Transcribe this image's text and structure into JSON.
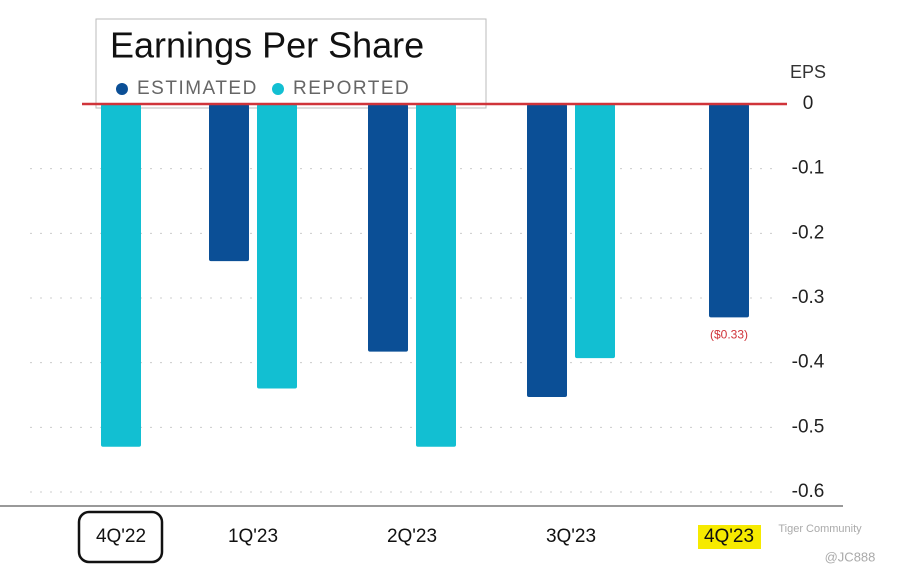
{
  "chart_data": {
    "type": "bar",
    "title": "Earnings Per Share",
    "y_label": "EPS",
    "categories": [
      "4Q'22",
      "1Q'23",
      "2Q'23",
      "3Q'23",
      "4Q'23"
    ],
    "series": [
      {
        "name": "ESTIMATED",
        "color": "#0b4f96",
        "values": [
          null,
          -0.243,
          -0.383,
          -0.453,
          -0.33
        ],
        "value_labels": [
          null,
          null,
          null,
          null,
          "($0.33)"
        ]
      },
      {
        "name": "REPORTED",
        "color": "#12bfd2",
        "values": [
          -0.53,
          -0.44,
          -0.53,
          -0.393,
          null
        ]
      }
    ],
    "ylim": [
      0,
      -0.6
    ],
    "yticks": [
      0,
      -0.1,
      -0.2,
      -0.3,
      -0.4,
      -0.5,
      -0.6
    ],
    "grid": true,
    "zero_line_color": "#d0343a",
    "watermark": [
      "Tiger Community",
      "@JC888"
    ]
  }
}
